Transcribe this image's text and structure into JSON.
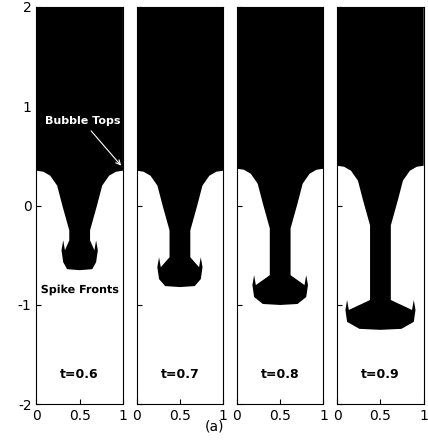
{
  "chart_data": {
    "type": "interface",
    "xlim": [
      0,
      1
    ],
    "ylim": [
      -2,
      2
    ],
    "xticks": [
      0,
      0.5,
      1
    ],
    "yticks": [
      -2,
      -1,
      0,
      1,
      2
    ],
    "color": "#000000",
    "panels": [
      {
        "label": "t=0.6",
        "bubble_top": 0.35,
        "spike_front": -0.65
      },
      {
        "label": "t=0.7",
        "bubble_top": 0.35,
        "spike_front": -0.82
      },
      {
        "label": "t=0.8",
        "bubble_top": 0.37,
        "spike_front": -1.0
      },
      {
        "label": "t=0.9",
        "bubble_top": 0.4,
        "spike_front": -1.25
      }
    ],
    "annotations": [
      {
        "text": "Bubble Tops"
      },
      {
        "text": "Spike Fronts"
      }
    ],
    "caption": "(a)"
  }
}
